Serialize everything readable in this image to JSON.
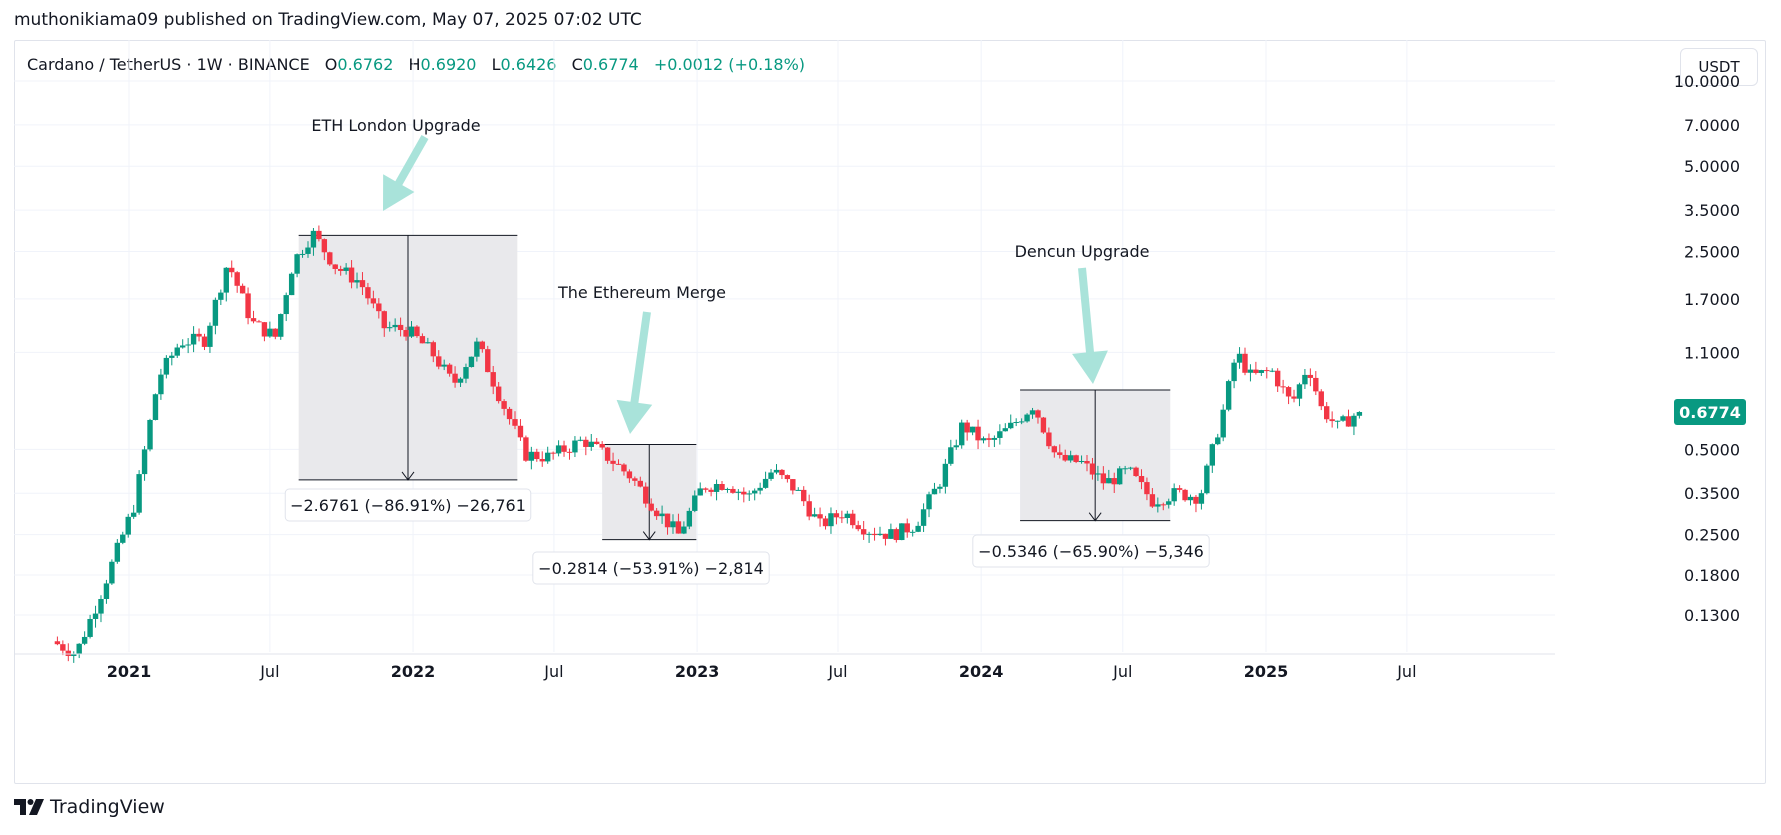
{
  "header": {
    "publisher_line": "muthonikiama09 published on TradingView.com, May 07, 2025 07:02 UTC"
  },
  "legend": {
    "symbol": "Cardano / TetherUS · 1W · BINANCE",
    "open_label": "O",
    "open": "0.6762",
    "high_label": "H",
    "high": "0.6920",
    "low_label": "L",
    "low": "0.6426",
    "close_label": "C",
    "close": "0.6774",
    "change": "+0.0012 (+0.18%)"
  },
  "currency_button": "USDT",
  "brand": {
    "name": "TradingView"
  },
  "colors": {
    "up": "#089981",
    "down": "#f23645",
    "arrow": "#a9e3da",
    "range_fill": "#e9e9ec",
    "price_tag": "#089981"
  },
  "chart_data": {
    "type": "candlestick",
    "symbol": "ADA/USDT",
    "interval": "1W",
    "scale": "log",
    "y_ticks": [
      "10.0000",
      "7.0000",
      "5.0000",
      "3.5000",
      "2.5000",
      "1.7000",
      "1.1000",
      "0.5000",
      "0.3500",
      "0.2500",
      "0.1800",
      "0.1300"
    ],
    "x_ticks": [
      "2021",
      "Jul",
      "2022",
      "Jul",
      "2023",
      "Jul",
      "2024",
      "Jul",
      "2025",
      "Jul"
    ],
    "last_price": "0.6774",
    "series_points": [
      [
        "2020-10-01",
        0.105
      ],
      [
        "2020-11-01",
        0.095
      ],
      [
        "2020-12-01",
        0.15
      ],
      [
        "2021-01-15",
        0.32
      ],
      [
        "2021-02-15",
        0.9
      ],
      [
        "2021-03-15",
        1.2
      ],
      [
        "2021-04-15",
        1.22
      ],
      [
        "2021-05-15",
        2.3
      ],
      [
        "2021-06-15",
        1.4
      ],
      [
        "2021-07-15",
        1.25
      ],
      [
        "2021-08-07",
        2.3
      ],
      [
        "2021-09-01",
        2.9
      ],
      [
        "2021-10-01",
        2.2
      ],
      [
        "2021-11-01",
        1.95
      ],
      [
        "2021-12-01",
        1.35
      ],
      [
        "2022-01-01",
        1.32
      ],
      [
        "2022-02-01",
        1.1
      ],
      [
        "2022-03-01",
        0.85
      ],
      [
        "2022-04-01",
        1.18
      ],
      [
        "2022-05-01",
        0.75
      ],
      [
        "2022-06-01",
        0.48
      ],
      [
        "2022-07-01",
        0.47
      ],
      [
        "2022-08-15",
        0.54
      ],
      [
        "2022-09-15",
        0.47
      ],
      [
        "2022-10-15",
        0.4
      ],
      [
        "2022-11-15",
        0.31
      ],
      [
        "2022-12-15",
        0.25
      ],
      [
        "2023-01-15",
        0.37
      ],
      [
        "2023-02-15",
        0.38
      ],
      [
        "2023-03-15",
        0.34
      ],
      [
        "2023-04-15",
        0.42
      ],
      [
        "2023-05-15",
        0.36
      ],
      [
        "2023-06-15",
        0.27
      ],
      [
        "2023-07-15",
        0.3
      ],
      [
        "2023-08-15",
        0.26
      ],
      [
        "2023-09-15",
        0.25
      ],
      [
        "2023-10-15",
        0.27
      ],
      [
        "2023-11-15",
        0.38
      ],
      [
        "2023-12-15",
        0.61
      ],
      [
        "2024-01-15",
        0.52
      ],
      [
        "2024-02-15",
        0.6
      ],
      [
        "2024-03-15",
        0.72
      ],
      [
        "2024-04-15",
        0.46
      ],
      [
        "2024-05-15",
        0.45
      ],
      [
        "2024-06-15",
        0.38
      ],
      [
        "2024-07-15",
        0.42
      ],
      [
        "2024-08-15",
        0.33
      ],
      [
        "2024-09-15",
        0.35
      ],
      [
        "2024-10-15",
        0.34
      ],
      [
        "2024-11-15",
        0.7
      ],
      [
        "2024-12-01",
        1.1
      ],
      [
        "2024-12-20",
        0.9
      ],
      [
        "2025-01-15",
        0.95
      ],
      [
        "2025-02-10",
        0.72
      ],
      [
        "2025-03-03",
        1.0
      ],
      [
        "2025-03-20",
        0.7
      ],
      [
        "2025-04-10",
        0.6
      ],
      [
        "2025-05-07",
        0.6774
      ]
    ],
    "annotations": [
      {
        "label": "ETH London Upgrade",
        "measure": "−2.6761 (−86.91%) −26,761",
        "from": "2021-08-07",
        "to": "2022-05-15",
        "high": 2.85,
        "low": 0.39
      },
      {
        "label": "The Ethereum Merge",
        "measure": "−0.2814 (−53.91%) −2,814",
        "from": "2022-09-01",
        "to": "2022-12-31",
        "high": 0.52,
        "low": 0.24
      },
      {
        "label": "Dencun Upgrade",
        "measure": "−0.5346 (−65.90%) −5,346",
        "from": "2024-02-20",
        "to": "2024-08-31",
        "high": 0.81,
        "low": 0.28
      }
    ]
  }
}
